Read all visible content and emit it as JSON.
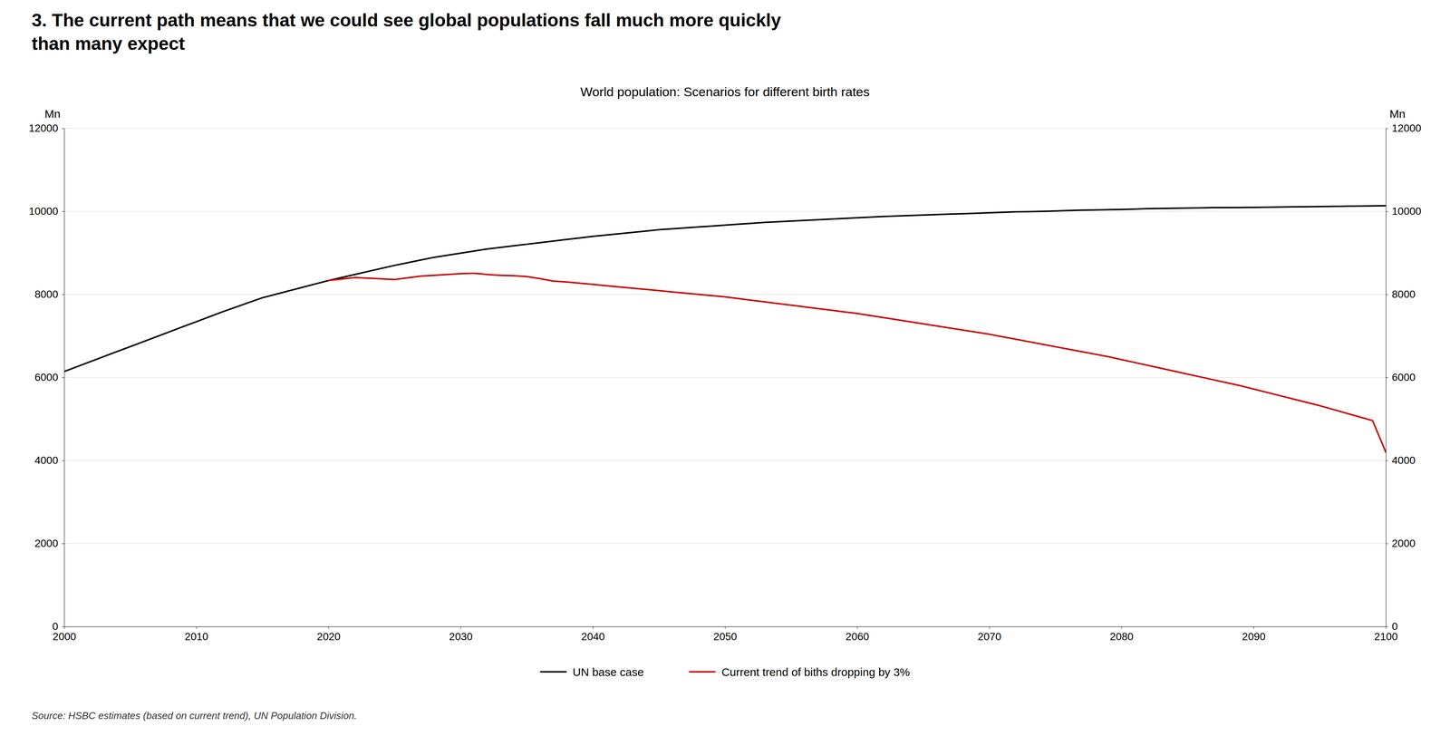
{
  "chart_data": {
    "type": "line",
    "title": "3. The current path means that we could see global populations fall much more quickly\nthan many expect",
    "subtitle": "World population: Scenarios for different birth rates",
    "y_label": "Mn",
    "y2_label": "Mn",
    "source": "Source: HSBC estimates (based on current trend), UN Population Division.",
    "xlim": [
      2000,
      2100
    ],
    "ylim": [
      0,
      12000
    ],
    "y2lim": [
      0,
      12000
    ],
    "xticks": [
      2000,
      2010,
      2020,
      2030,
      2040,
      2050,
      2060,
      2070,
      2080,
      2090,
      2100
    ],
    "yticks": [
      0,
      2000,
      4000,
      6000,
      8000,
      10000,
      12000
    ],
    "y2ticks": [
      0,
      2000,
      4000,
      6000,
      8000,
      10000,
      12000
    ],
    "grid": true,
    "legend": "bottom",
    "series": [
      {
        "name": "UN base case",
        "color": "#000000",
        "x": [
          2000,
          2001,
          2002,
          2003,
          2004,
          2005,
          2006,
          2007,
          2008,
          2009,
          2010,
          2011,
          2012,
          2013,
          2014,
          2015,
          2016,
          2017,
          2018,
          2019,
          2020,
          2021,
          2022,
          2023,
          2024,
          2025,
          2026,
          2027,
          2028,
          2029,
          2030,
          2031,
          2032,
          2033,
          2034,
          2035,
          2036,
          2037,
          2038,
          2039,
          2040,
          2041,
          2042,
          2043,
          2044,
          2045,
          2046,
          2047,
          2048,
          2049,
          2050,
          2051,
          2052,
          2053,
          2054,
          2055,
          2056,
          2057,
          2058,
          2059,
          2060,
          2061,
          2062,
          2063,
          2064,
          2065,
          2066,
          2067,
          2068,
          2069,
          2070,
          2071,
          2072,
          2073,
          2074,
          2075,
          2076,
          2077,
          2078,
          2079,
          2080,
          2081,
          2082,
          2083,
          2084,
          2085,
          2086,
          2087,
          2088,
          2089,
          2090,
          2091,
          2092,
          2093,
          2094,
          2095,
          2096,
          2097,
          2098,
          2099,
          2100
        ],
        "values": [
          6143,
          6263,
          6383,
          6503,
          6623,
          6743,
          6863,
          6983,
          7103,
          7223,
          7343,
          7463,
          7583,
          7695,
          7807,
          7919,
          8002,
          8085,
          8168,
          8251,
          8334,
          8407,
          8480,
          8553,
          8626,
          8699,
          8764,
          8829,
          8894,
          8944,
          8994,
          9044,
          9094,
          9132,
          9170,
          9208,
          9246,
          9284,
          9322,
          9360,
          9398,
          9430,
          9462,
          9494,
          9526,
          9558,
          9580,
          9602,
          9624,
          9646,
          9668,
          9690,
          9712,
          9734,
          9750,
          9766,
          9782,
          9798,
          9814,
          9830,
          9846,
          9862,
          9878,
          9889,
          9900,
          9911,
          9922,
          9933,
          9944,
          9955,
          9966,
          9977,
          9988,
          9994,
          10000,
          10010,
          10020,
          10030,
          10035,
          10040,
          10045,
          10055,
          10065,
          10070,
          10075,
          10080,
          10085,
          10090,
          10092,
          10094,
          10096,
          10100,
          10104,
          10108,
          10112,
          10116,
          10120,
          10124,
          10128,
          10132,
          10136
        ]
      },
      {
        "name": "Current trend of biths dropping by 3%",
        "color": "#cc0000",
        "x": [
          2020,
          2021,
          2022,
          2023,
          2024,
          2025,
          2026,
          2027,
          2028,
          2029,
          2030,
          2031,
          2032,
          2033,
          2034,
          2035,
          2036,
          2037,
          2038,
          2039,
          2040,
          2041,
          2042,
          2043,
          2044,
          2045,
          2046,
          2047,
          2048,
          2049,
          2050,
          2051,
          2052,
          2053,
          2054,
          2055,
          2056,
          2057,
          2058,
          2059,
          2060,
          2061,
          2062,
          2063,
          2064,
          2065,
          2066,
          2067,
          2068,
          2069,
          2070,
          2071,
          2072,
          2073,
          2074,
          2075,
          2076,
          2077,
          2078,
          2079,
          2080,
          2081,
          2082,
          2083,
          2084,
          2085,
          2086,
          2087,
          2088,
          2089,
          2090,
          2091,
          2092,
          2093,
          2094,
          2095,
          2096,
          2097,
          2098,
          2099,
          2100
        ],
        "values": [
          8334,
          8370,
          8406,
          8390,
          8374,
          8358,
          8400,
          8440,
          8460,
          8480,
          8500,
          8510,
          8480,
          8460,
          8450,
          8430,
          8380,
          8320,
          8300,
          8270,
          8240,
          8210,
          8180,
          8150,
          8120,
          8090,
          8060,
          8030,
          8000,
          7970,
          7940,
          7900,
          7860,
          7820,
          7780,
          7740,
          7700,
          7660,
          7620,
          7580,
          7540,
          7490,
          7440,
          7390,
          7340,
          7290,
          7240,
          7190,
          7140,
          7090,
          7040,
          6980,
          6920,
          6860,
          6800,
          6740,
          6680,
          6620,
          6560,
          6500,
          6430,
          6360,
          6290,
          6220,
          6150,
          6080,
          6010,
          5940,
          5870,
          5800,
          5720,
          5640,
          5560,
          5480,
          5400,
          5320,
          5230,
          5140,
          5050,
          4960,
          4200
        ]
      }
    ]
  }
}
